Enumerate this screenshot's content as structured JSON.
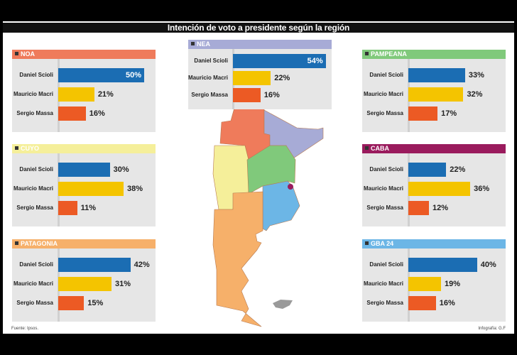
{
  "title": "Intención de voto a presidente según la región",
  "footer": {
    "source": "Fuente: Ipsos.",
    "credit": "Infografía: G.F"
  },
  "colors": {
    "Daniel Scioli": "#1b6db3",
    "Mauricio Macri": "#f4c400",
    "Sergio Massa": "#ec5a24"
  },
  "chart_data": [
    {
      "type": "bar",
      "title": "NOA",
      "color": "#ef7b5b",
      "categories": [
        "Daniel Scioli",
        "Mauricio Macri",
        "Sergio Massa"
      ],
      "values": [
        50,
        21,
        16
      ],
      "labels": [
        "50%",
        "21%",
        "16%"
      ]
    },
    {
      "type": "bar",
      "title": "NEA",
      "color": "#a7abd6",
      "categories": [
        "Daniel Scioli",
        "Mauricio Macri",
        "Sergio Massa"
      ],
      "values": [
        54,
        22,
        16
      ],
      "labels": [
        "54%",
        "22%",
        "16%"
      ]
    },
    {
      "type": "bar",
      "title": "PAMPEANA",
      "color": "#80c97b",
      "categories": [
        "Daniel Scioli",
        "Mauricio Macri",
        "Sergio Massa"
      ],
      "values": [
        33,
        32,
        17
      ],
      "labels": [
        "33%",
        "32%",
        "17%"
      ]
    },
    {
      "type": "bar",
      "title": "CUYO",
      "color": "#f5ef9a",
      "categories": [
        "Daniel Scioli",
        "Mauricio Macri",
        "Sergio Massa"
      ],
      "values": [
        30,
        38,
        11
      ],
      "labels": [
        "30%",
        "38%",
        "11%"
      ]
    },
    {
      "type": "bar",
      "title": "CABA",
      "color": "#9a1b5d",
      "categories": [
        "Daniel Scioli",
        "Mauricio Macri",
        "Sergio Massa"
      ],
      "values": [
        22,
        36,
        12
      ],
      "labels": [
        "22%",
        "36%",
        "12%"
      ]
    },
    {
      "type": "bar",
      "title": "PATAGONIA",
      "color": "#f6b06a",
      "categories": [
        "Daniel Scioli",
        "Mauricio Macri",
        "Sergio Massa"
      ],
      "values": [
        42,
        31,
        15
      ],
      "labels": [
        "42%",
        "31%",
        "15%"
      ]
    },
    {
      "type": "bar",
      "title": "GBA 24",
      "color": "#6cb6e6",
      "categories": [
        "Daniel Scioli",
        "Mauricio Macri",
        "Sergio Massa"
      ],
      "values": [
        40,
        19,
        16
      ],
      "labels": [
        "40%",
        "19%",
        "16%"
      ]
    }
  ]
}
